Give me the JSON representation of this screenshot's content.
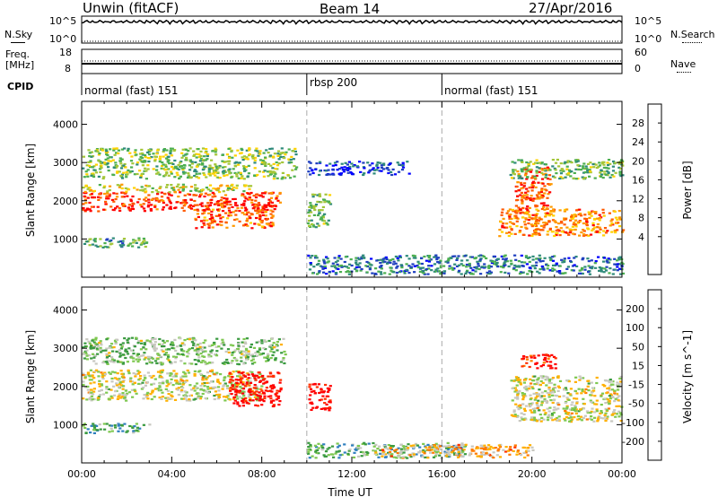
{
  "header": {
    "title": "Unwin (fitACF)",
    "beam": "Beam 14",
    "date": "27/Apr/2016"
  },
  "status_panel": {
    "nsky_label": "N.Sky",
    "nsearch_label": "N.Search",
    "freq_label_line1": "Freq.",
    "freq_label_line2": "[MHz]",
    "nave_label": "Nave",
    "cpid_label": "CPID",
    "left_ticks_top": [
      "10^5",
      "10^0"
    ],
    "right_ticks_top": [
      "10^5",
      "10^0"
    ],
    "left_ticks_freq": [
      "18",
      "8"
    ],
    "right_ticks_nave": [
      "60",
      "0"
    ],
    "cpid_segments": [
      {
        "label": "normal (fast) 151",
        "start_hour": 0
      },
      {
        "label": "rbsp 200",
        "start_hour": 10
      },
      {
        "label": "normal (fast) 151",
        "start_hour": 16
      }
    ]
  },
  "chart_data": [
    {
      "type": "heatmap",
      "panel": "power",
      "ylabel": "Slant Range [km]",
      "yticks": [
        "1000",
        "2000",
        "3000",
        "4000"
      ],
      "ylim": [
        0,
        4600
      ],
      "xlim": [
        0,
        24
      ],
      "colorbar_label": "Power [dB]",
      "colorbar_ticks": [
        "28",
        "24",
        "20",
        "16",
        "12",
        "8",
        "4"
      ],
      "colorbar_colors": [
        "#0000ff",
        "#1f3fbf",
        "#2e8a7a",
        "#4caf50",
        "#a4c639",
        "#ffd200",
        "#ff9900",
        "#ff5a00",
        "#ff0000"
      ],
      "regions": [
        {
          "x0": 0.0,
          "x1": 8.8,
          "y0": 1750,
          "y1": 2250,
          "level": 0.9
        },
        {
          "x0": 0.0,
          "x1": 7.5,
          "y0": 2250,
          "y1": 2450,
          "level": 0.55
        },
        {
          "x0": 5.0,
          "x1": 8.5,
          "y0": 1300,
          "y1": 1800,
          "level": 0.8
        },
        {
          "x0": 0.0,
          "x1": 9.5,
          "y0": 2600,
          "y1": 3400,
          "level": 0.45
        },
        {
          "x0": 0.0,
          "x1": 3.0,
          "y0": 800,
          "y1": 1050,
          "level": 0.35
        },
        {
          "x0": 10.0,
          "x1": 14.5,
          "y0": 2700,
          "y1": 3050,
          "level": 0.15
        },
        {
          "x0": 10.0,
          "x1": 11.0,
          "y0": 1300,
          "y1": 2200,
          "level": 0.4
        },
        {
          "x0": 10.0,
          "x1": 24.0,
          "y0": 100,
          "y1": 600,
          "level": 0.25
        },
        {
          "x0": 18.5,
          "x1": 24.0,
          "y0": 1100,
          "y1": 1800,
          "level": 0.75
        },
        {
          "x0": 19.2,
          "x1": 20.8,
          "y0": 1700,
          "y1": 2900,
          "level": 0.85
        },
        {
          "x0": 19.0,
          "x1": 24.0,
          "y0": 2600,
          "y1": 3100,
          "level": 0.4
        }
      ]
    },
    {
      "type": "heatmap",
      "panel": "velocity",
      "ylabel": "Slant Range [km]",
      "yticks": [
        "1000",
        "2000",
        "3000",
        "4000"
      ],
      "ylim": [
        0,
        4600
      ],
      "xlim": [
        0,
        24
      ],
      "xlabel": "Time UT",
      "xticks": [
        "00:00",
        "04:00",
        "08:00",
        "12:00",
        "16:00",
        "20:00",
        "00:00"
      ],
      "colorbar_label": "Velocity [m s^-1]",
      "colorbar_ticks": [
        "200",
        "100",
        "50",
        "15",
        "-15",
        "-50",
        "-100",
        "-200"
      ],
      "colorbar_colors": [
        "#1f3fbf",
        "#2f7fbf",
        "#3a9a40",
        "#7ec850",
        "#c8c8c0",
        "#ffb000",
        "#ff7a00",
        "#ff3000",
        "#ff0000"
      ],
      "regions": [
        {
          "x0": 0.0,
          "x1": 8.0,
          "y0": 1650,
          "y1": 2450,
          "level": 0.5
        },
        {
          "x0": 6.5,
          "x1": 8.8,
          "y0": 1500,
          "y1": 2400,
          "level": 0.95
        },
        {
          "x0": 10.0,
          "x1": 11.0,
          "y0": 1400,
          "y1": 2100,
          "level": 0.95
        },
        {
          "x0": 0.0,
          "x1": 9.0,
          "y0": 2600,
          "y1": 3300,
          "level": 0.4
        },
        {
          "x0": 0.0,
          "x1": 3.0,
          "y0": 800,
          "y1": 1050,
          "level": 0.3
        },
        {
          "x0": 10.0,
          "x1": 17.0,
          "y0": 150,
          "y1": 550,
          "level": 0.3
        },
        {
          "x0": 13.0,
          "x1": 20.0,
          "y0": 150,
          "y1": 500,
          "level": 0.62
        },
        {
          "x0": 19.0,
          "x1": 24.0,
          "y0": 1100,
          "y1": 2300,
          "level": 0.5
        },
        {
          "x0": 19.5,
          "x1": 21.0,
          "y0": 2500,
          "y1": 2900,
          "level": 0.9
        }
      ]
    }
  ]
}
